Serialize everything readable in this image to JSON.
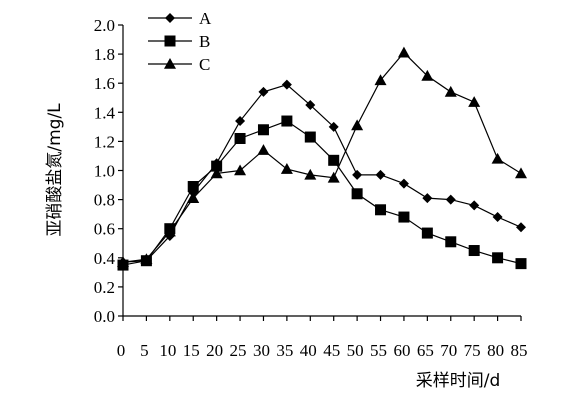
{
  "chart_data": {
    "type": "line",
    "xlabel": "采样时间/d",
    "ylabel": "亚硝酸盐氮/mg/L",
    "x": [
      0,
      5,
      10,
      15,
      20,
      25,
      30,
      35,
      40,
      45,
      50,
      55,
      60,
      65,
      70,
      75,
      80,
      85
    ],
    "xticks": [
      "0",
      "5",
      "10",
      "15",
      "20",
      "25",
      "30",
      "35",
      "40",
      "45",
      "50",
      "55",
      "60",
      "65",
      "70",
      "75",
      "80",
      "85"
    ],
    "yticks": [
      "0.0",
      "0.2",
      "0.4",
      "0.6",
      "0.8",
      "1.0",
      "1.2",
      "1.4",
      "1.6",
      "1.8",
      "2.0"
    ],
    "ylim": [
      0,
      2.0
    ],
    "grid": false,
    "legend_position": "top-left",
    "series": [
      {
        "name": "A",
        "marker": "diamond",
        "values": [
          0.37,
          0.38,
          0.55,
          0.85,
          1.05,
          1.34,
          1.54,
          1.59,
          1.45,
          1.3,
          0.97,
          0.97,
          0.91,
          0.81,
          0.8,
          0.76,
          0.68,
          0.61
        ]
      },
      {
        "name": "B",
        "marker": "square",
        "values": [
          0.35,
          0.38,
          0.6,
          0.89,
          1.03,
          1.22,
          1.28,
          1.34,
          1.23,
          1.07,
          0.84,
          0.73,
          0.68,
          0.57,
          0.51,
          0.45,
          0.4,
          0.36
        ]
      },
      {
        "name": "C",
        "marker": "triangle",
        "values": [
          0.37,
          0.39,
          0.58,
          0.81,
          0.98,
          1.0,
          1.14,
          1.01,
          0.97,
          0.95,
          1.31,
          1.62,
          1.81,
          1.65,
          1.54,
          1.47,
          1.08,
          0.98
        ]
      }
    ]
  }
}
